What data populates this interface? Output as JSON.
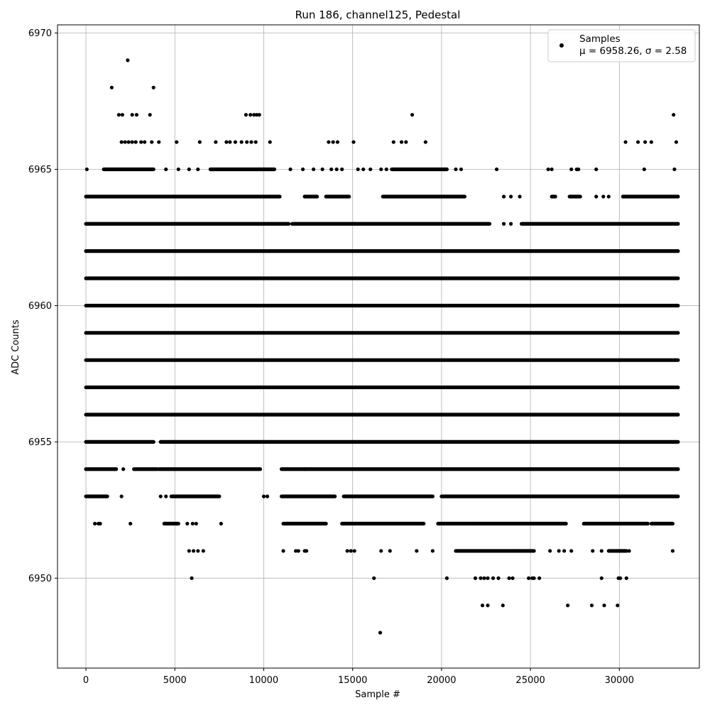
{
  "chart_data": {
    "type": "scatter",
    "title": "Run 186, channel125, Pedestal",
    "xlabel": "Sample #",
    "ylabel": "ADC Counts",
    "xlim": [
      -1600,
      34500
    ],
    "ylim": [
      6946.7,
      6970.3
    ],
    "xticks": [
      0,
      5000,
      10000,
      15000,
      20000,
      25000,
      30000
    ],
    "yticks": [
      6950,
      6955,
      6960,
      6965,
      6970
    ],
    "grid": true,
    "legend": {
      "placement": "top-right",
      "label": "Samples",
      "stats": "μ = 6958.26, σ = 2.58"
    },
    "series": [
      {
        "name": "Samples",
        "color": "#000000",
        "marker": "circle",
        "x_range": [
          0,
          33300
        ],
        "levels": [
          {
            "y": 6956,
            "segments": [
              [
                0,
                33300
              ]
            ]
          },
          {
            "y": 6957,
            "segments": [
              [
                0,
                33300
              ]
            ]
          },
          {
            "y": 6958,
            "segments": [
              [
                0,
                33300
              ]
            ]
          },
          {
            "y": 6959,
            "segments": [
              [
                0,
                33300
              ]
            ]
          },
          {
            "y": 6960,
            "segments": [
              [
                0,
                33300
              ]
            ]
          },
          {
            "y": 6961,
            "segments": [
              [
                0,
                33300
              ]
            ]
          },
          {
            "y": 6962,
            "segments": [
              [
                0,
                33300
              ]
            ]
          },
          {
            "y": 6955,
            "segments": [
              [
                0,
                3800
              ],
              [
                4200,
                33300
              ]
            ]
          },
          {
            "y": 6963,
            "segments": [
              [
                0,
                11400
              ],
              [
                11600,
                22700
              ],
              [
                24500,
                33300
              ]
            ]
          },
          {
            "y": 6954,
            "segments": [
              [
                0,
                1700
              ],
              [
                2700,
                4000
              ],
              [
                4100,
                9800
              ],
              [
                11000,
                33300
              ]
            ]
          },
          {
            "y": 6964,
            "segments": [
              [
                0,
                10900
              ],
              [
                12300,
                13000
              ],
              [
                13500,
                14800
              ],
              [
                16700,
                21300
              ],
              [
                26200,
                26400
              ],
              [
                27200,
                27800
              ],
              [
                30200,
                33300
              ]
            ]
          },
          {
            "y": 6965,
            "segments": [
              [
                1000,
                3800
              ],
              [
                7000,
                10600
              ],
              [
                17200,
                20300
              ]
            ]
          },
          {
            "y": 6953,
            "segments": [
              [
                0,
                1200
              ],
              [
                4800,
                7500
              ],
              [
                11000,
                14000
              ],
              [
                14500,
                19500
              ],
              [
                20000,
                33300
              ]
            ]
          },
          {
            "y": 6952,
            "segments": [
              [
                4400,
                5200
              ],
              [
                11100,
                13500
              ],
              [
                14400,
                19000
              ],
              [
                19800,
                22000
              ],
              [
                22000,
                27000
              ],
              [
                28000,
                31600
              ],
              [
                31800,
                33000
              ]
            ]
          },
          {
            "y": 6951,
            "segments": [
              [
                20800,
                24200
              ],
              [
                24200,
                25200
              ],
              [
                29400,
                30400
              ]
            ]
          }
        ],
        "points": [
          [
            2350,
            6969
          ],
          [
            1450,
            6968
          ],
          [
            3800,
            6968
          ],
          [
            1850,
            6967
          ],
          [
            2050,
            6967
          ],
          [
            2600,
            6967
          ],
          [
            2850,
            6967
          ],
          [
            3600,
            6967
          ],
          [
            9000,
            6967
          ],
          [
            9250,
            6967
          ],
          [
            9450,
            6967
          ],
          [
            9600,
            6967
          ],
          [
            9750,
            6967
          ],
          [
            18350,
            6967
          ],
          [
            33050,
            6967
          ],
          [
            2000,
            6966
          ],
          [
            2200,
            6966
          ],
          [
            2400,
            6966
          ],
          [
            2600,
            6966
          ],
          [
            2800,
            6966
          ],
          [
            3100,
            6966
          ],
          [
            3300,
            6966
          ],
          [
            3700,
            6966
          ],
          [
            4100,
            6966
          ],
          [
            5100,
            6966
          ],
          [
            6400,
            6966
          ],
          [
            7300,
            6966
          ],
          [
            7900,
            6966
          ],
          [
            8100,
            6966
          ],
          [
            8400,
            6966
          ],
          [
            8750,
            6966
          ],
          [
            9050,
            6966
          ],
          [
            9300,
            6966
          ],
          [
            9550,
            6966
          ],
          [
            10350,
            6966
          ],
          [
            13650,
            6966
          ],
          [
            13900,
            6966
          ],
          [
            14150,
            6966
          ],
          [
            15050,
            6966
          ],
          [
            17300,
            6966
          ],
          [
            17750,
            6966
          ],
          [
            18000,
            6966
          ],
          [
            19100,
            6966
          ],
          [
            30350,
            6966
          ],
          [
            31050,
            6966
          ],
          [
            31450,
            6966
          ],
          [
            31800,
            6966
          ],
          [
            33200,
            6966
          ],
          [
            50,
            6965
          ],
          [
            4500,
            6965
          ],
          [
            5200,
            6965
          ],
          [
            5800,
            6965
          ],
          [
            6300,
            6965
          ],
          [
            11500,
            6965
          ],
          [
            12200,
            6965
          ],
          [
            12800,
            6965
          ],
          [
            13300,
            6965
          ],
          [
            13800,
            6965
          ],
          [
            14100,
            6965
          ],
          [
            14400,
            6965
          ],
          [
            15300,
            6965
          ],
          [
            15600,
            6965
          ],
          [
            16000,
            6965
          ],
          [
            16600,
            6965
          ],
          [
            16900,
            6965
          ],
          [
            20800,
            6965
          ],
          [
            21100,
            6965
          ],
          [
            23100,
            6965
          ],
          [
            26000,
            6965
          ],
          [
            26200,
            6965
          ],
          [
            27300,
            6965
          ],
          [
            27600,
            6965
          ],
          [
            27700,
            6965
          ],
          [
            28700,
            6965
          ],
          [
            31400,
            6965
          ],
          [
            33100,
            6965
          ],
          [
            23500,
            6964
          ],
          [
            23900,
            6964
          ],
          [
            24400,
            6964
          ],
          [
            28700,
            6964
          ],
          [
            29100,
            6964
          ],
          [
            29400,
            6964
          ],
          [
            23500,
            6963
          ],
          [
            23900,
            6963
          ],
          [
            2100,
            6954
          ],
          [
            12350,
            6954
          ],
          [
            2000,
            6953
          ],
          [
            4200,
            6953
          ],
          [
            4500,
            6953
          ],
          [
            10000,
            6953
          ],
          [
            10200,
            6953
          ],
          [
            500,
            6952
          ],
          [
            700,
            6952
          ],
          [
            800,
            6952
          ],
          [
            2500,
            6952
          ],
          [
            5700,
            6952
          ],
          [
            6000,
            6952
          ],
          [
            6200,
            6952
          ],
          [
            7600,
            6952
          ],
          [
            5800,
            6951
          ],
          [
            6050,
            6951
          ],
          [
            6300,
            6951
          ],
          [
            6600,
            6951
          ],
          [
            11100,
            6951
          ],
          [
            11800,
            6951
          ],
          [
            11950,
            6951
          ],
          [
            12300,
            6951
          ],
          [
            12400,
            6951
          ],
          [
            14700,
            6951
          ],
          [
            14900,
            6951
          ],
          [
            15100,
            6951
          ],
          [
            16600,
            6951
          ],
          [
            17100,
            6951
          ],
          [
            18600,
            6951
          ],
          [
            19500,
            6951
          ],
          [
            26100,
            6951
          ],
          [
            26600,
            6951
          ],
          [
            26900,
            6951
          ],
          [
            27300,
            6951
          ],
          [
            28500,
            6951
          ],
          [
            29000,
            6951
          ],
          [
            30550,
            6951
          ],
          [
            33000,
            6951
          ],
          [
            5950,
            6950
          ],
          [
            16200,
            6950
          ],
          [
            20300,
            6950
          ],
          [
            21900,
            6950
          ],
          [
            22200,
            6950
          ],
          [
            22400,
            6950
          ],
          [
            22600,
            6950
          ],
          [
            22900,
            6950
          ],
          [
            23200,
            6950
          ],
          [
            23800,
            6950
          ],
          [
            24000,
            6950
          ],
          [
            24900,
            6950
          ],
          [
            25100,
            6950
          ],
          [
            25200,
            6950
          ],
          [
            25500,
            6950
          ],
          [
            29000,
            6950
          ],
          [
            29950,
            6950
          ],
          [
            30050,
            6950
          ],
          [
            30400,
            6950
          ],
          [
            22300,
            6949
          ],
          [
            22600,
            6949
          ],
          [
            23450,
            6949
          ],
          [
            27100,
            6949
          ],
          [
            28450,
            6949
          ],
          [
            29150,
            6949
          ],
          [
            29900,
            6949
          ],
          [
            16550,
            6948
          ]
        ]
      }
    ]
  }
}
